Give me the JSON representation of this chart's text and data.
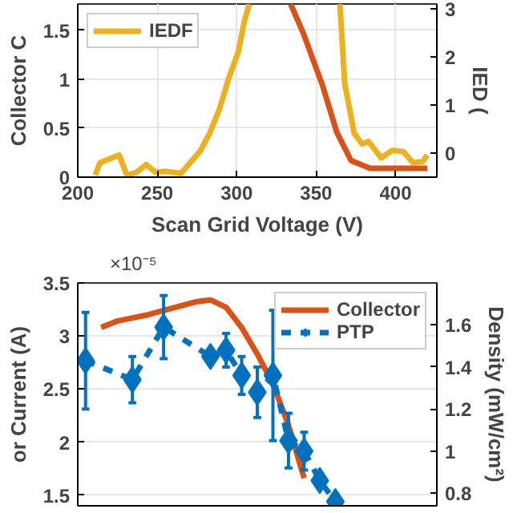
{
  "chart_data": [
    {
      "type": "line",
      "xlabel": "Scan Grid Voltage (V)",
      "ylabel": "Collector C",
      "y2label": "IED (",
      "xlim": [
        200,
        426
      ],
      "xticks": [
        200,
        250,
        300,
        350,
        400
      ],
      "ylim": [
        0,
        1.77
      ],
      "yticks": [
        0,
        0.5,
        1,
        1.5
      ],
      "y2lim": [
        -0.5,
        3.1
      ],
      "y2ticks": [
        0,
        1,
        2,
        3
      ],
      "grid": true,
      "legend": "top left",
      "line_style": "solid",
      "marker": "none",
      "series": [
        {
          "color": "#d95319",
          "x": [
            334,
            342,
            354,
            363,
            372,
            384,
            420
          ],
          "values": [
            1.77,
            1.47,
            0.94,
            0.46,
            0.17,
            0.09,
            0.09
          ]
        },
        {
          "name": "IEDF",
          "color": "#edb120",
          "axis": "y2",
          "x": [
            211,
            214,
            226,
            231,
            237,
            243,
            249,
            255,
            265,
            277,
            283,
            289,
            295,
            301,
            305,
            308,
            336,
            365,
            368,
            374,
            379,
            383,
            391,
            398,
            405,
            411,
            417,
            420
          ],
          "values": [
            -0.46,
            -0.2,
            -0.04,
            -0.46,
            -0.4,
            -0.24,
            -0.4,
            -0.38,
            -0.42,
            0.04,
            0.41,
            0.9,
            1.55,
            2.1,
            2.76,
            3.1,
            null,
            3.1,
            1.45,
            0.41,
            0.19,
            0.24,
            -0.1,
            0.06,
            0.03,
            -0.2,
            -0.18,
            -0.04
          ]
        }
      ]
    },
    {
      "type": "line",
      "ylabel": "or Current (A)",
      "y2label": "Density (mW/cm²)",
      "annotations": [
        "×10⁻⁵"
      ],
      "categories": [
        null,
        null,
        null,
        null,
        null,
        null,
        null,
        null,
        null,
        null,
        null,
        null,
        null,
        null,
        null,
        null,
        null,
        null,
        null,
        null,
        null,
        null,
        null
      ],
      "ylim": [
        1.4,
        3.5
      ],
      "yticks": [
        1.5,
        2,
        2.5,
        3,
        3.5
      ],
      "y2lim": [
        0.74,
        1.8
      ],
      "y2ticks": [
        0.8,
        1,
        1.2,
        1.4,
        1.6
      ],
      "grid": "y",
      "legend": "top right",
      "series": [
        {
          "name": "Collector",
          "color": "#d95319",
          "line_style": "solid",
          "marker": "none",
          "values": [
            null,
            3.08,
            3.14,
            3.17,
            3.2,
            3.24,
            3.28,
            3.32,
            3.34,
            3.27,
            3.08,
            2.83,
            2.55,
            2.16,
            1.66,
            null,
            null,
            null,
            null,
            null,
            null,
            null,
            null
          ]
        },
        {
          "name": "PTP",
          "color": "#0072bd",
          "axis": "y2",
          "line_style": "dashed",
          "marker": "diamond",
          "values": [
            1.43,
            null,
            null,
            1.34,
            null,
            1.59,
            null,
            null,
            1.45,
            1.48,
            1.36,
            1.28,
            1.36,
            1.05,
            1.0,
            0.86,
            0.76,
            null,
            null,
            null,
            null,
            null,
            null
          ],
          "errors": [
            0.23,
            null,
            null,
            0.11,
            null,
            0.15,
            null,
            null,
            null,
            0.08,
            0.09,
            0.12,
            0.31,
            0.13,
            0.09,
            null,
            null,
            null,
            null,
            null,
            null,
            null,
            null
          ]
        }
      ]
    }
  ]
}
